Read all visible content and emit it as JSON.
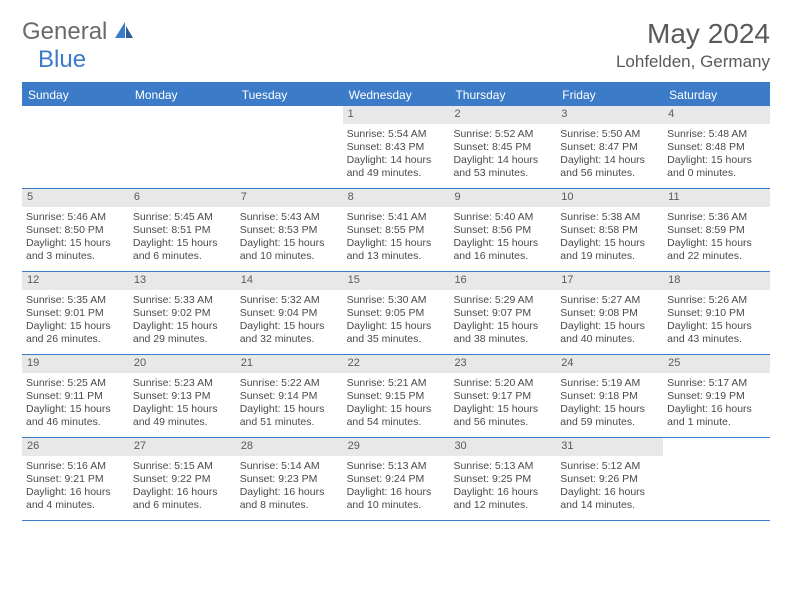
{
  "logo": {
    "text1": "General",
    "text2": "Blue"
  },
  "title": "May 2024",
  "location": "Lohfelden, Germany",
  "header_bg": "#3b7bc7",
  "daynum_bg": "#e8e8e8",
  "dayNames": [
    "Sunday",
    "Monday",
    "Tuesday",
    "Wednesday",
    "Thursday",
    "Friday",
    "Saturday"
  ],
  "weeks": [
    [
      {
        "day": "",
        "lines": []
      },
      {
        "day": "",
        "lines": []
      },
      {
        "day": "",
        "lines": []
      },
      {
        "day": "1",
        "lines": [
          "Sunrise: 5:54 AM",
          "Sunset: 8:43 PM",
          "Daylight: 14 hours and 49 minutes."
        ]
      },
      {
        "day": "2",
        "lines": [
          "Sunrise: 5:52 AM",
          "Sunset: 8:45 PM",
          "Daylight: 14 hours and 53 minutes."
        ]
      },
      {
        "day": "3",
        "lines": [
          "Sunrise: 5:50 AM",
          "Sunset: 8:47 PM",
          "Daylight: 14 hours and 56 minutes."
        ]
      },
      {
        "day": "4",
        "lines": [
          "Sunrise: 5:48 AM",
          "Sunset: 8:48 PM",
          "Daylight: 15 hours and 0 minutes."
        ]
      }
    ],
    [
      {
        "day": "5",
        "lines": [
          "Sunrise: 5:46 AM",
          "Sunset: 8:50 PM",
          "Daylight: 15 hours and 3 minutes."
        ]
      },
      {
        "day": "6",
        "lines": [
          "Sunrise: 5:45 AM",
          "Sunset: 8:51 PM",
          "Daylight: 15 hours and 6 minutes."
        ]
      },
      {
        "day": "7",
        "lines": [
          "Sunrise: 5:43 AM",
          "Sunset: 8:53 PM",
          "Daylight: 15 hours and 10 minutes."
        ]
      },
      {
        "day": "8",
        "lines": [
          "Sunrise: 5:41 AM",
          "Sunset: 8:55 PM",
          "Daylight: 15 hours and 13 minutes."
        ]
      },
      {
        "day": "9",
        "lines": [
          "Sunrise: 5:40 AM",
          "Sunset: 8:56 PM",
          "Daylight: 15 hours and 16 minutes."
        ]
      },
      {
        "day": "10",
        "lines": [
          "Sunrise: 5:38 AM",
          "Sunset: 8:58 PM",
          "Daylight: 15 hours and 19 minutes."
        ]
      },
      {
        "day": "11",
        "lines": [
          "Sunrise: 5:36 AM",
          "Sunset: 8:59 PM",
          "Daylight: 15 hours and 22 minutes."
        ]
      }
    ],
    [
      {
        "day": "12",
        "lines": [
          "Sunrise: 5:35 AM",
          "Sunset: 9:01 PM",
          "Daylight: 15 hours and 26 minutes."
        ]
      },
      {
        "day": "13",
        "lines": [
          "Sunrise: 5:33 AM",
          "Sunset: 9:02 PM",
          "Daylight: 15 hours and 29 minutes."
        ]
      },
      {
        "day": "14",
        "lines": [
          "Sunrise: 5:32 AM",
          "Sunset: 9:04 PM",
          "Daylight: 15 hours and 32 minutes."
        ]
      },
      {
        "day": "15",
        "lines": [
          "Sunrise: 5:30 AM",
          "Sunset: 9:05 PM",
          "Daylight: 15 hours and 35 minutes."
        ]
      },
      {
        "day": "16",
        "lines": [
          "Sunrise: 5:29 AM",
          "Sunset: 9:07 PM",
          "Daylight: 15 hours and 38 minutes."
        ]
      },
      {
        "day": "17",
        "lines": [
          "Sunrise: 5:27 AM",
          "Sunset: 9:08 PM",
          "Daylight: 15 hours and 40 minutes."
        ]
      },
      {
        "day": "18",
        "lines": [
          "Sunrise: 5:26 AM",
          "Sunset: 9:10 PM",
          "Daylight: 15 hours and 43 minutes."
        ]
      }
    ],
    [
      {
        "day": "19",
        "lines": [
          "Sunrise: 5:25 AM",
          "Sunset: 9:11 PM",
          "Daylight: 15 hours and 46 minutes."
        ]
      },
      {
        "day": "20",
        "lines": [
          "Sunrise: 5:23 AM",
          "Sunset: 9:13 PM",
          "Daylight: 15 hours and 49 minutes."
        ]
      },
      {
        "day": "21",
        "lines": [
          "Sunrise: 5:22 AM",
          "Sunset: 9:14 PM",
          "Daylight: 15 hours and 51 minutes."
        ]
      },
      {
        "day": "22",
        "lines": [
          "Sunrise: 5:21 AM",
          "Sunset: 9:15 PM",
          "Daylight: 15 hours and 54 minutes."
        ]
      },
      {
        "day": "23",
        "lines": [
          "Sunrise: 5:20 AM",
          "Sunset: 9:17 PM",
          "Daylight: 15 hours and 56 minutes."
        ]
      },
      {
        "day": "24",
        "lines": [
          "Sunrise: 5:19 AM",
          "Sunset: 9:18 PM",
          "Daylight: 15 hours and 59 minutes."
        ]
      },
      {
        "day": "25",
        "lines": [
          "Sunrise: 5:17 AM",
          "Sunset: 9:19 PM",
          "Daylight: 16 hours and 1 minute."
        ]
      }
    ],
    [
      {
        "day": "26",
        "lines": [
          "Sunrise: 5:16 AM",
          "Sunset: 9:21 PM",
          "Daylight: 16 hours and 4 minutes."
        ]
      },
      {
        "day": "27",
        "lines": [
          "Sunrise: 5:15 AM",
          "Sunset: 9:22 PM",
          "Daylight: 16 hours and 6 minutes."
        ]
      },
      {
        "day": "28",
        "lines": [
          "Sunrise: 5:14 AM",
          "Sunset: 9:23 PM",
          "Daylight: 16 hours and 8 minutes."
        ]
      },
      {
        "day": "29",
        "lines": [
          "Sunrise: 5:13 AM",
          "Sunset: 9:24 PM",
          "Daylight: 16 hours and 10 minutes."
        ]
      },
      {
        "day": "30",
        "lines": [
          "Sunrise: 5:13 AM",
          "Sunset: 9:25 PM",
          "Daylight: 16 hours and 12 minutes."
        ]
      },
      {
        "day": "31",
        "lines": [
          "Sunrise: 5:12 AM",
          "Sunset: 9:26 PM",
          "Daylight: 16 hours and 14 minutes."
        ]
      },
      {
        "day": "",
        "lines": []
      }
    ]
  ]
}
